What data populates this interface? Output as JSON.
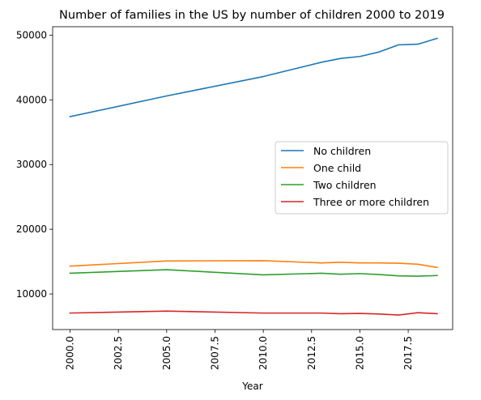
{
  "chart_data": {
    "type": "line",
    "title": "Number of families in the US by number of children 2000 to 2019",
    "xlabel": "Year",
    "ylabel": "",
    "xlim": [
      1999.1,
      2019.8
    ],
    "ylim": [
      4500,
      51300
    ],
    "x_ticks": [
      2000.0,
      2002.5,
      2005.0,
      2007.5,
      2010.0,
      2012.5,
      2015.0,
      2017.5
    ],
    "x_tick_labels": [
      "2000.0",
      "2002.5",
      "2005.0",
      "2007.5",
      "2010.0",
      "2012.5",
      "2015.0",
      "2017.5"
    ],
    "y_ticks": [
      10000,
      20000,
      30000,
      40000,
      50000
    ],
    "y_tick_labels": [
      "10000",
      "20000",
      "30000",
      "40000",
      "50000"
    ],
    "legend_position": "center-right",
    "grid": false,
    "x": [
      2000,
      2005,
      2010,
      2013,
      2014,
      2015,
      2016,
      2017,
      2018,
      2019
    ],
    "series": [
      {
        "name": "No children",
        "color": "#1f77b4",
        "values": [
          37400,
          40600,
          43600,
          45800,
          46400,
          46700,
          47400,
          48500,
          48600,
          49500
        ]
      },
      {
        "name": "One child",
        "color": "#ff7f0e",
        "values": [
          14300,
          15100,
          15150,
          14800,
          14900,
          14800,
          14800,
          14750,
          14600,
          14100
        ]
      },
      {
        "name": "Two children",
        "color": "#2ca02c",
        "values": [
          13200,
          13750,
          12950,
          13200,
          13050,
          13150,
          13000,
          12800,
          12750,
          12850
        ]
      },
      {
        "name": "Three or more children",
        "color": "#d62728",
        "values": [
          7050,
          7350,
          7050,
          7050,
          6950,
          7000,
          6900,
          6750,
          7100,
          6950
        ]
      }
    ]
  }
}
